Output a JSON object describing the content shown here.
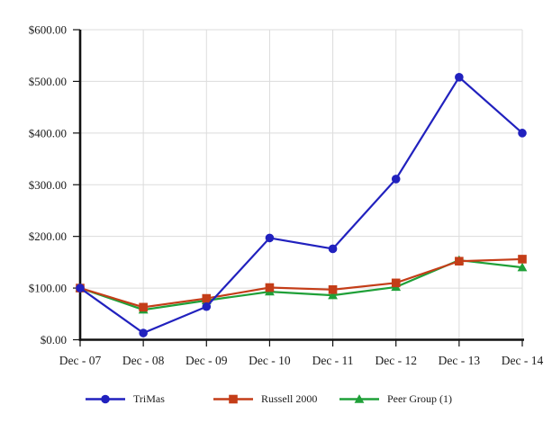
{
  "chart_data": {
    "type": "line",
    "title": "",
    "xlabel": "",
    "ylabel": "",
    "categories": [
      "Dec - 07",
      "Dec - 08",
      "Dec - 09",
      "Dec - 10",
      "Dec - 11",
      "Dec - 12",
      "Dec - 13",
      "Dec - 14"
    ],
    "series": [
      {
        "name": "TriMas",
        "color": "#2121BE",
        "marker": "circle",
        "values": [
          100.0,
          13.0,
          64.0,
          197.0,
          176.0,
          311.0,
          508.0,
          400.0
        ]
      },
      {
        "name": "Russell 2000",
        "color": "#C43D18",
        "marker": "square",
        "values": [
          100.0,
          63.0,
          80.0,
          101.0,
          97.0,
          110.0,
          152.0,
          156.0
        ]
      },
      {
        "name": "Peer Group (1)",
        "color": "#1FA038",
        "marker": "triangle",
        "values": [
          100.0,
          58.0,
          76.0,
          93.0,
          86.0,
          102.0,
          154.0,
          140.0
        ]
      }
    ],
    "ylim": [
      0,
      600
    ],
    "y_tick_step": 100,
    "y_tick_labels": [
      "$0.00",
      "$100.00",
      "$200.00",
      "$300.00",
      "$400.00",
      "$500.00",
      "$600.00"
    ],
    "grid": true,
    "legend_position": "bottom",
    "axis_color": "#111111",
    "gridline_color": "#DCDCDC",
    "background_color": "#FFFFFF"
  }
}
